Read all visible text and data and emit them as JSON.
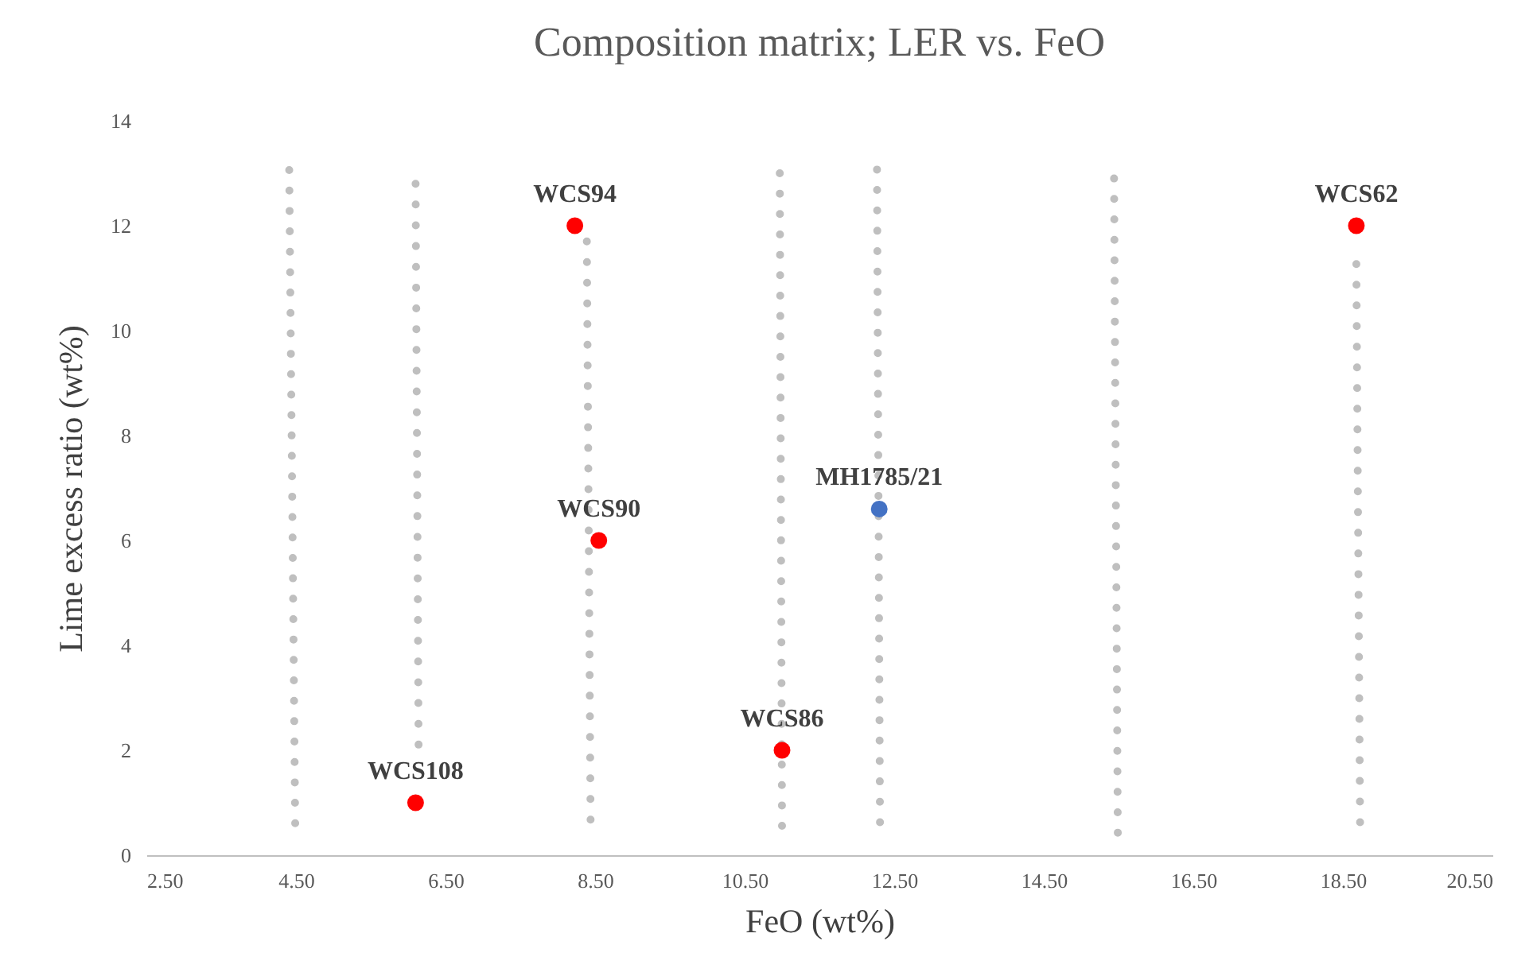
{
  "chart_data": {
    "type": "scatter",
    "title": "Composition matrix; LER vs. FeO",
    "xlabel": "FeO (wt%)",
    "ylabel": "Lime excess ratio (wt%)",
    "xlim": [
      2.5,
      20.5
    ],
    "xticks": [
      {
        "value": 2.5,
        "label": "2.50"
      },
      {
        "value": 4.5,
        "label": "4.50"
      },
      {
        "value": 6.5,
        "label": "6.50"
      },
      {
        "value": 8.5,
        "label": "8.50"
      },
      {
        "value": 10.5,
        "label": "10.50"
      },
      {
        "value": 12.5,
        "label": "12.50"
      },
      {
        "value": 14.5,
        "label": "14.50"
      },
      {
        "value": 16.5,
        "label": "16.50"
      },
      {
        "value": 18.5,
        "label": "18.50"
      },
      {
        "value": 20.5,
        "label": "20.50"
      }
    ],
    "ylim": [
      0,
      14
    ],
    "yticks": [
      0,
      2,
      4,
      6,
      8,
      10,
      12,
      14
    ],
    "grid": false,
    "series": [
      {
        "type": "line",
        "line_style": "dotted",
        "color": "#bfbfbf",
        "x": [
          4.41,
          4.49
        ],
        "values": [
          13.06,
          0.6
        ]
      },
      {
        "type": "line",
        "line_style": "dotted",
        "color": "#bfbfbf",
        "x": [
          6.1,
          6.14
        ],
        "values": [
          12.8,
          2.1
        ]
      },
      {
        "type": "line",
        "line_style": "dotted",
        "color": "#bfbfbf",
        "x": [
          8.39,
          8.44
        ],
        "values": [
          11.7,
          0.67
        ]
      },
      {
        "type": "line",
        "line_style": "dotted",
        "color": "#bfbfbf",
        "x": [
          10.97,
          11.0
        ],
        "values": [
          13.0,
          0.55
        ]
      },
      {
        "type": "line",
        "line_style": "dotted",
        "color": "#bfbfbf",
        "x": [
          12.27,
          12.31
        ],
        "values": [
          13.07,
          0.62
        ]
      },
      {
        "type": "line",
        "line_style": "dotted",
        "color": "#bfbfbf",
        "x": [
          15.44,
          15.49
        ],
        "values": [
          12.9,
          0.42
        ]
      },
      {
        "type": "line",
        "line_style": "dotted",
        "color": "#bfbfbf",
        "x": [
          18.68,
          18.73
        ],
        "values": [
          11.27,
          0.62
        ]
      },
      {
        "marker": "circle",
        "color": "#ff0000",
        "x": [
          6.1,
          8.23,
          8.55,
          11.0,
          18.68
        ],
        "values": [
          1.0,
          12.0,
          6.0,
          2.0,
          12.0
        ]
      },
      {
        "marker": "circle",
        "color": "#4472c4",
        "x": [
          12.3
        ],
        "values": [
          6.6
        ]
      }
    ],
    "annotations": [
      {
        "text": "WCS108",
        "x": 6.1,
        "y": 1.0
      },
      {
        "text": "WCS94",
        "x": 8.23,
        "y": 12.0
      },
      {
        "text": "WCS90",
        "x": 8.55,
        "y": 6.0
      },
      {
        "text": "WCS86",
        "x": 11.0,
        "y": 2.0
      },
      {
        "text": "WCS62",
        "x": 18.68,
        "y": 12.0
      },
      {
        "text": "MH1785/21",
        "x": 12.3,
        "y": 6.6
      }
    ]
  }
}
